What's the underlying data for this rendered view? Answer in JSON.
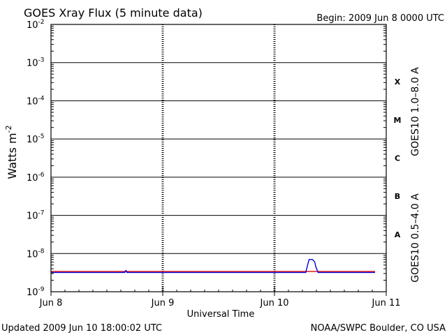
{
  "header": {
    "title": "GOES Xray Flux (5 minute data)",
    "begin": "Begin:  2009 Jun 8 0000 UTC"
  },
  "footer": {
    "updated": "Updated 2009 Jun 10 18:00:02 UTC",
    "credit": "NOAA/SWPC Boulder, CO USA"
  },
  "colors": {
    "long_channel": "#e00000",
    "short_channel": "#0000e0",
    "grid": "#000000",
    "background": "#ffffff"
  },
  "chart_data": {
    "type": "line",
    "title": "GOES Xray Flux (5 minute data)",
    "xlabel": "Universal Time",
    "ylabel": "Watts m",
    "ylabel_superscript": "-2",
    "x_ticks": [
      "Jun 8",
      "Jun 9",
      "Jun 10",
      "Jun 11"
    ],
    "x_unit": "days since 2009 Jun 8 0000 UTC",
    "xlim": [
      0,
      3
    ],
    "y_scale": "log",
    "ylim": [
      1e-09,
      0.01
    ],
    "y_ticks": [
      {
        "base": "10",
        "exp": "-9"
      },
      {
        "base": "10",
        "exp": "-8"
      },
      {
        "base": "10",
        "exp": "-7"
      },
      {
        "base": "10",
        "exp": "-6"
      },
      {
        "base": "10",
        "exp": "-5"
      },
      {
        "base": "10",
        "exp": "-4"
      },
      {
        "base": "10",
        "exp": "-3"
      },
      {
        "base": "10",
        "exp": "-2"
      }
    ],
    "flare_classes": [
      "X",
      "M",
      "C",
      "B",
      "A"
    ],
    "grid": true,
    "series": [
      {
        "name": "GOES10 1.0–8.0 A",
        "color": "#e00000",
        "x": [
          0.0,
          0.66,
          0.67,
          0.68,
          1.2,
          1.3,
          2.0,
          2.9
        ],
        "y": [
          3.4e-09,
          3.4e-09,
          3.5e-09,
          3.4e-09,
          3.4e-09,
          3.4e-09,
          3.4e-09,
          3.4e-09
        ]
      },
      {
        "name": "GOES10 0.5–4.0 A",
        "color": "#0000e0",
        "x": [
          0.0,
          0.66,
          0.67,
          0.68,
          1.5,
          2.28,
          2.3,
          2.31,
          2.34,
          2.36,
          2.37,
          2.39,
          2.9
        ],
        "y": [
          3.2e-09,
          3.2e-09,
          3.6e-09,
          3.2e-09,
          3.2e-09,
          3.2e-09,
          5.5e-09,
          7e-09,
          7e-09,
          6e-09,
          4.5e-09,
          3.2e-09,
          3.2e-09
        ]
      }
    ]
  }
}
